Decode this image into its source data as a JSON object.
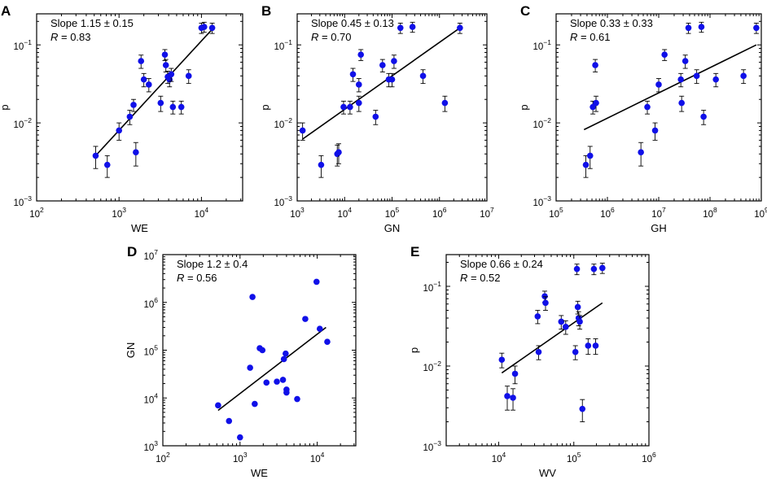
{
  "chart_data": [
    {
      "id": "A",
      "type": "scatter",
      "panel_label": "A",
      "xlabel": "WE",
      "ylabel": "p",
      "x_scale": "log",
      "y_scale": "log",
      "xlim": [
        100,
        31623
      ],
      "ylim": [
        0.001,
        0.25
      ],
      "x_tick_exps": [
        2,
        3,
        4
      ],
      "y_tick_exps": [
        -3,
        -2,
        -1
      ],
      "annotation": {
        "slope": "Slope 1.15 ± 0.15",
        "r_label": "R",
        "r_value": " = 0.83"
      },
      "fit_line": {
        "x": [
          520,
          14000
        ],
        "y": [
          0.0038,
          0.165
        ]
      },
      "points": [
        {
          "x": 520,
          "y": 0.0038,
          "err": 0.0012
        },
        {
          "x": 720,
          "y": 0.0029,
          "err": 0.0009
        },
        {
          "x": 1000,
          "y": 0.008,
          "err": 0.002
        },
        {
          "x": 1350,
          "y": 0.012,
          "err": 0.0025
        },
        {
          "x": 1500,
          "y": 0.017,
          "err": 0.003
        },
        {
          "x": 1600,
          "y": 0.0042,
          "err": 0.0014
        },
        {
          "x": 1850,
          "y": 0.062,
          "err": 0.012
        },
        {
          "x": 2000,
          "y": 0.036,
          "err": 0.007
        },
        {
          "x": 2300,
          "y": 0.031,
          "err": 0.006
        },
        {
          "x": 3200,
          "y": 0.018,
          "err": 0.004
        },
        {
          "x": 3600,
          "y": 0.075,
          "err": 0.012
        },
        {
          "x": 3700,
          "y": 0.055,
          "err": 0.01
        },
        {
          "x": 3900,
          "y": 0.039,
          "err": 0.007
        },
        {
          "x": 4100,
          "y": 0.036,
          "err": 0.007
        },
        {
          "x": 4300,
          "y": 0.042,
          "err": 0.008
        },
        {
          "x": 4500,
          "y": 0.016,
          "err": 0.003
        },
        {
          "x": 5700,
          "y": 0.016,
          "err": 0.003
        },
        {
          "x": 7000,
          "y": 0.04,
          "err": 0.008
        },
        {
          "x": 10000,
          "y": 0.165,
          "err": 0.025
        },
        {
          "x": 10800,
          "y": 0.17,
          "err": 0.025
        },
        {
          "x": 13500,
          "y": 0.165,
          "err": 0.025
        }
      ]
    },
    {
      "id": "B",
      "type": "scatter",
      "panel_label": "B",
      "xlabel": "GN",
      "ylabel": "p",
      "x_scale": "log",
      "y_scale": "log",
      "xlim": [
        1000,
        10000000
      ],
      "ylim": [
        0.001,
        0.25
      ],
      "x_tick_exps": [
        3,
        4,
        5,
        6,
        7
      ],
      "y_tick_exps": [
        -3,
        -2,
        -1
      ],
      "annotation": {
        "slope": "Slope 0.45 ± 0.13",
        "r_label": "R",
        "r_value": " = 0.70"
      },
      "fit_line": {
        "x": [
          1300,
          2700000
        ],
        "y": [
          0.0062,
          0.165
        ]
      },
      "points": [
        {
          "x": 1300,
          "y": 0.008,
          "err": 0.002
        },
        {
          "x": 3200,
          "y": 0.0029,
          "err": 0.0009
        },
        {
          "x": 7000,
          "y": 0.004,
          "err": 0.0012
        },
        {
          "x": 7500,
          "y": 0.0042,
          "err": 0.0012
        },
        {
          "x": 9500,
          "y": 0.016,
          "err": 0.003
        },
        {
          "x": 13000,
          "y": 0.016,
          "err": 0.003
        },
        {
          "x": 15000,
          "y": 0.042,
          "err": 0.008
        },
        {
          "x": 20000,
          "y": 0.018,
          "err": 0.004
        },
        {
          "x": 20000,
          "y": 0.031,
          "err": 0.006
        },
        {
          "x": 22000,
          "y": 0.075,
          "err": 0.012
        },
        {
          "x": 45000,
          "y": 0.012,
          "err": 0.0025
        },
        {
          "x": 63000,
          "y": 0.055,
          "err": 0.01
        },
        {
          "x": 85000,
          "y": 0.036,
          "err": 0.007
        },
        {
          "x": 100000,
          "y": 0.036,
          "err": 0.007
        },
        {
          "x": 110000,
          "y": 0.062,
          "err": 0.012
        },
        {
          "x": 150000,
          "y": 0.165,
          "err": 0.025
        },
        {
          "x": 270000,
          "y": 0.17,
          "err": 0.025
        },
        {
          "x": 450000,
          "y": 0.04,
          "err": 0.008
        },
        {
          "x": 1300000,
          "y": 0.018,
          "err": 0.004
        },
        {
          "x": 2700000,
          "y": 0.165,
          "err": 0.025
        }
      ]
    },
    {
      "id": "C",
      "type": "scatter",
      "panel_label": "C",
      "xlabel": "GH",
      "ylabel": "p",
      "x_scale": "log",
      "y_scale": "log",
      "xlim": [
        100000,
        1000000000
      ],
      "ylim": [
        0.001,
        0.25
      ],
      "x_tick_exps": [
        5,
        6,
        7,
        8,
        9
      ],
      "y_tick_exps": [
        -3,
        -2,
        -1
      ],
      "annotation": {
        "slope": "Slope 0.33 ± 0.33",
        "r_label": "R",
        "r_value": " = 0.61"
      },
      "fit_line": {
        "x": [
          350000,
          800000000
        ],
        "y": [
          0.0082,
          0.1
        ]
      },
      "points": [
        {
          "x": 380000,
          "y": 0.0029,
          "err": 0.0009
        },
        {
          "x": 460000,
          "y": 0.0038,
          "err": 0.0012
        },
        {
          "x": 520000,
          "y": 0.016,
          "err": 0.003
        },
        {
          "x": 600000,
          "y": 0.018,
          "err": 0.004
        },
        {
          "x": 580000,
          "y": 0.055,
          "err": 0.01
        },
        {
          "x": 4500000,
          "y": 0.0042,
          "err": 0.0014
        },
        {
          "x": 6000000,
          "y": 0.016,
          "err": 0.003
        },
        {
          "x": 8500000,
          "y": 0.008,
          "err": 0.002
        },
        {
          "x": 10000000,
          "y": 0.031,
          "err": 0.006
        },
        {
          "x": 13000000,
          "y": 0.075,
          "err": 0.012
        },
        {
          "x": 27000000,
          "y": 0.036,
          "err": 0.007
        },
        {
          "x": 28000000,
          "y": 0.018,
          "err": 0.004
        },
        {
          "x": 33000000,
          "y": 0.062,
          "err": 0.012
        },
        {
          "x": 38000000,
          "y": 0.165,
          "err": 0.025
        },
        {
          "x": 55000000,
          "y": 0.04,
          "err": 0.008
        },
        {
          "x": 68000000,
          "y": 0.17,
          "err": 0.025
        },
        {
          "x": 75000000,
          "y": 0.012,
          "err": 0.0025
        },
        {
          "x": 130000000,
          "y": 0.036,
          "err": 0.007
        },
        {
          "x": 450000000,
          "y": 0.04,
          "err": 0.008
        },
        {
          "x": 800000000,
          "y": 0.165,
          "err": 0.025
        }
      ]
    },
    {
      "id": "D",
      "type": "scatter",
      "panel_label": "D",
      "xlabel": "WE",
      "ylabel": "GN",
      "x_scale": "log",
      "y_scale": "log",
      "xlim": [
        100,
        31623
      ],
      "ylim": [
        1000,
        10000000
      ],
      "x_tick_exps": [
        2,
        3,
        4
      ],
      "y_tick_exps": [
        3,
        4,
        5,
        6,
        7
      ],
      "annotation": {
        "slope": "Slope 1.2 ± 0.4",
        "r_label": "R",
        "r_value": " = 0.56"
      },
      "fit_line": {
        "x": [
          520,
          13000
        ],
        "y": [
          5500,
          300000
        ]
      },
      "points": [
        {
          "x": 520,
          "y": 7000,
          "err": 0
        },
        {
          "x": 720,
          "y": 3300,
          "err": 0
        },
        {
          "x": 1000,
          "y": 1500,
          "err": 0
        },
        {
          "x": 1350,
          "y": 43000,
          "err": 0
        },
        {
          "x": 1450,
          "y": 1300000,
          "err": 0
        },
        {
          "x": 1550,
          "y": 7500,
          "err": 0
        },
        {
          "x": 1800,
          "y": 110000,
          "err": 0
        },
        {
          "x": 1950,
          "y": 100000,
          "err": 0
        },
        {
          "x": 2200,
          "y": 21000,
          "err": 0
        },
        {
          "x": 3000,
          "y": 22000,
          "err": 0
        },
        {
          "x": 3600,
          "y": 24000,
          "err": 0
        },
        {
          "x": 3700,
          "y": 65000,
          "err": 0
        },
        {
          "x": 3900,
          "y": 85000,
          "err": 0
        },
        {
          "x": 4000,
          "y": 15000,
          "err": 0
        },
        {
          "x": 4000,
          "y": 13000,
          "err": 0
        },
        {
          "x": 5500,
          "y": 9500,
          "err": 0
        },
        {
          "x": 7000,
          "y": 450000,
          "err": 0
        },
        {
          "x": 9800,
          "y": 2700000,
          "err": 0
        },
        {
          "x": 10800,
          "y": 280000,
          "err": 0
        },
        {
          "x": 13500,
          "y": 150000,
          "err": 0
        }
      ]
    },
    {
      "id": "E",
      "type": "scatter",
      "panel_label": "E",
      "xlabel": "WV",
      "ylabel": "p",
      "x_scale": "log",
      "y_scale": "log",
      "xlim": [
        2000,
        1000000
      ],
      "ylim": [
        0.001,
        0.25
      ],
      "x_tick_exps": [
        4,
        5,
        6
      ],
      "y_tick_exps": [
        -3,
        -2,
        -1
      ],
      "annotation": {
        "slope": "Slope 0.66 ± 0.24",
        "r_label": "R",
        "r_value": " = 0.52"
      },
      "fit_line": {
        "x": [
          11000,
          240000
        ],
        "y": [
          0.0082,
          0.062
        ]
      },
      "points": [
        {
          "x": 11000,
          "y": 0.012,
          "err": 0.0025
        },
        {
          "x": 13000,
          "y": 0.0042,
          "err": 0.0014
        },
        {
          "x": 15500,
          "y": 0.004,
          "err": 0.0012
        },
        {
          "x": 16500,
          "y": 0.008,
          "err": 0.002
        },
        {
          "x": 33000,
          "y": 0.042,
          "err": 0.008
        },
        {
          "x": 34000,
          "y": 0.015,
          "err": 0.003
        },
        {
          "x": 41000,
          "y": 0.075,
          "err": 0.012
        },
        {
          "x": 42000,
          "y": 0.062,
          "err": 0.012
        },
        {
          "x": 68000,
          "y": 0.036,
          "err": 0.007
        },
        {
          "x": 78000,
          "y": 0.031,
          "err": 0.006
        },
        {
          "x": 105000,
          "y": 0.015,
          "err": 0.003
        },
        {
          "x": 110000,
          "y": 0.165,
          "err": 0.025
        },
        {
          "x": 113000,
          "y": 0.055,
          "err": 0.01
        },
        {
          "x": 116000,
          "y": 0.04,
          "err": 0.008
        },
        {
          "x": 120000,
          "y": 0.036,
          "err": 0.007
        },
        {
          "x": 130000,
          "y": 0.0029,
          "err": 0.0009
        },
        {
          "x": 155000,
          "y": 0.018,
          "err": 0.004
        },
        {
          "x": 185000,
          "y": 0.165,
          "err": 0.025
        },
        {
          "x": 195000,
          "y": 0.018,
          "err": 0.004
        },
        {
          "x": 240000,
          "y": 0.17,
          "err": 0.025
        }
      ]
    }
  ],
  "colors": {
    "marker": "#1010e8",
    "line": "#000000",
    "axis": "#000000"
  }
}
